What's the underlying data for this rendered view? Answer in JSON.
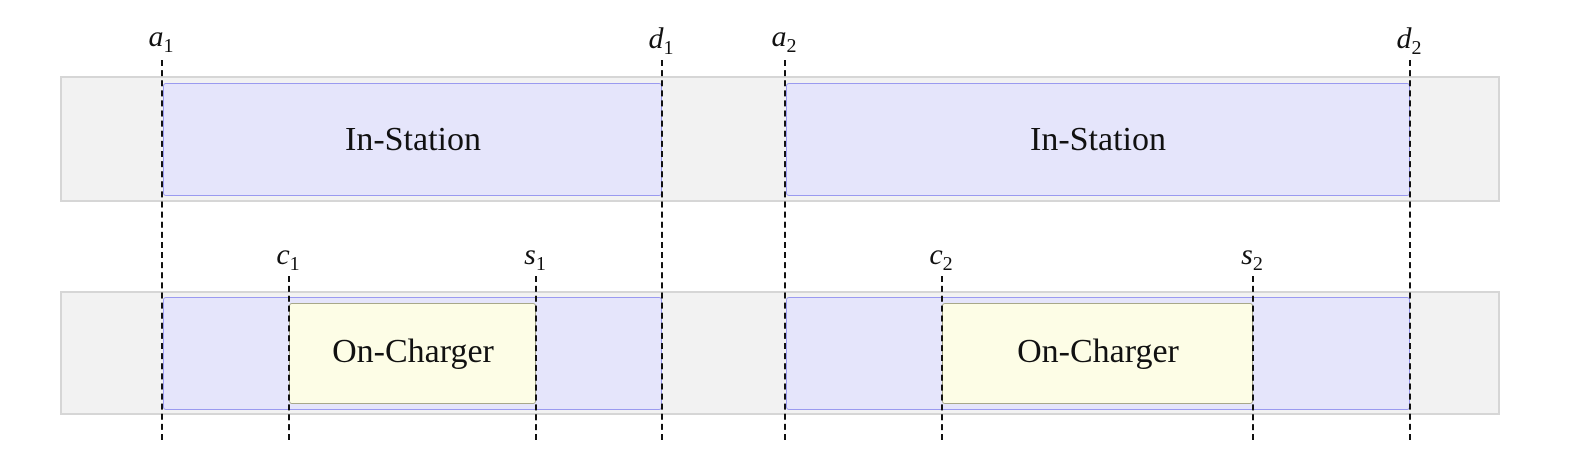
{
  "top_lane": {
    "blocks": [
      {
        "label": "In-Station"
      },
      {
        "label": "In-Station"
      }
    ]
  },
  "bottom_lane": {
    "blocks": [
      {
        "label": "On-Charger"
      },
      {
        "label": "On-Charger"
      }
    ]
  },
  "markers": {
    "a1": {
      "letter": "a",
      "sub": "1"
    },
    "d1": {
      "letter": "d",
      "sub": "1"
    },
    "a2": {
      "letter": "a",
      "sub": "2"
    },
    "d2": {
      "letter": "d",
      "sub": "2"
    },
    "c1": {
      "letter": "c",
      "sub": "1"
    },
    "s1": {
      "letter": "s",
      "sub": "1"
    },
    "c2": {
      "letter": "c",
      "sub": "2"
    },
    "s2": {
      "letter": "s",
      "sub": "2"
    }
  },
  "colors": {
    "lane_bg": "#f2f2f2",
    "station_fill": "#e5e5fb",
    "station_border": "#9a9af0",
    "charger_fill": "#fdfde6",
    "charger_border": "#a8a88a"
  }
}
